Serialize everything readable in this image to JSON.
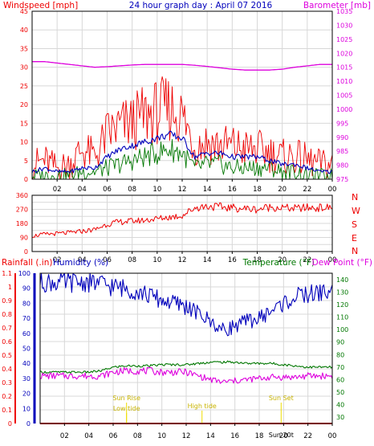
{
  "title": "24 hour graph day : April 07 2016",
  "colors": {
    "red": "#ee0000",
    "blue": "#0000bb",
    "green": "#007700",
    "magenta": "#dd00dd",
    "yellow": "#eedd00",
    "background": "#ffffff",
    "grid": "#d8d8d8"
  },
  "chart_data": [
    {
      "type": "line",
      "panel": "wind-barometer",
      "title": "24 hour graph day : April 07 2016",
      "left_axis_label": "Windspeed [mph]",
      "right_axis_label": "Barometer [mb]",
      "x_ticks": [
        "02",
        "04",
        "06",
        "08",
        "10",
        "12",
        "14",
        "16",
        "18",
        "20",
        "22",
        "00"
      ],
      "left_ylim": [
        0,
        45
      ],
      "left_ticks": [
        "0",
        "5",
        "10",
        "15",
        "20",
        "25",
        "30",
        "35",
        "40",
        "45"
      ],
      "right_ylim": [
        975,
        1035
      ],
      "right_ticks": [
        "975",
        "980",
        "985",
        "990",
        "995",
        "1000",
        "1005",
        "1010",
        "1015",
        "1020",
        "1025",
        "1030",
        "1035"
      ],
      "hours": [
        0,
        1,
        2,
        3,
        4,
        5,
        6,
        7,
        8,
        9,
        10,
        11,
        12,
        13,
        14,
        15,
        16,
        17,
        18,
        19,
        20,
        21,
        22,
        23,
        24
      ],
      "series": [
        {
          "axis": "left",
          "values": [
            4,
            5,
            3,
            4,
            8,
            6,
            12,
            14,
            15,
            17,
            18,
            19,
            17,
            9,
            10,
            9,
            9,
            8,
            8,
            7,
            6,
            6,
            5,
            4,
            4
          ]
        },
        {
          "axis": "left",
          "values": [
            2,
            3,
            2,
            2,
            3,
            3,
            6,
            8,
            9,
            10,
            11,
            12,
            11,
            6,
            7,
            7,
            6,
            6,
            6,
            5,
            4,
            4,
            3,
            2,
            2
          ]
        },
        {
          "axis": "left",
          "values": [
            1,
            1,
            1,
            1,
            2,
            2,
            3,
            4,
            5,
            6,
            7,
            8,
            7,
            3,
            4,
            4,
            3,
            3,
            3,
            3,
            2,
            2,
            1,
            1,
            1
          ]
        },
        {
          "axis": "right",
          "values": [
            1017,
            1017,
            1016.5,
            1016,
            1015.5,
            1015,
            1015.2,
            1015.5,
            1015.8,
            1016,
            1016,
            1016,
            1016,
            1015.7,
            1015.3,
            1014.8,
            1014.3,
            1014,
            1014,
            1014,
            1014.3,
            1015,
            1015.5,
            1016,
            1016
          ]
        }
      ]
    },
    {
      "type": "line",
      "panel": "wind-direction",
      "right_axis_letters": [
        "N",
        "W",
        "S",
        "E",
        "N"
      ],
      "x_ticks": [
        "02",
        "04",
        "06",
        "08",
        "10",
        "12",
        "14",
        "16",
        "18",
        "20",
        "22",
        "00"
      ],
      "ylim": [
        0,
        360
      ],
      "y_ticks": [
        "0",
        "90",
        "180",
        "270",
        "360"
      ],
      "hours": [
        0,
        1,
        2,
        3,
        4,
        5,
        6,
        7,
        8,
        9,
        10,
        11,
        12,
        13,
        14,
        15,
        16,
        17,
        18,
        19,
        20,
        21,
        22,
        23,
        24
      ],
      "series": [
        {
          "values": [
            100,
            110,
            115,
            120,
            130,
            140,
            175,
            190,
            195,
            200,
            210,
            220,
            230,
            280,
            290,
            285,
            280,
            275,
            270,
            285,
            280,
            275,
            280,
            280,
            280
          ]
        }
      ]
    },
    {
      "type": "line",
      "panel": "rain-humidity-temperature",
      "label_rainfall": "Rainfall (.in)",
      "label_humidity": "Humidity (%)",
      "label_temperature": "Temperature (°F)",
      "label_dewpoint": "Dew Point (°F)",
      "x_ticks": [
        "02",
        "04",
        "06",
        "08",
        "10",
        "12",
        "14",
        "16",
        "18",
        "20",
        "22",
        "00"
      ],
      "rain_ylim": [
        0,
        1.1
      ],
      "rain_ticks": [
        "0",
        "0.1",
        "0.2",
        "0.3",
        "0.4",
        "0.5",
        "0.6",
        "0.7",
        "0.8",
        "0.9",
        "1",
        "1.1"
      ],
      "humidity_ylim": [
        0,
        100
      ],
      "humidity_ticks": [
        "0",
        "10",
        "20",
        "30",
        "40",
        "50",
        "60",
        "70",
        "80",
        "90",
        "100"
      ],
      "temp_ylim": [
        25,
        145
      ],
      "temp_ticks": [
        "30",
        "40",
        "50",
        "60",
        "70",
        "80",
        "90",
        "100",
        "110",
        "120",
        "130",
        "140"
      ],
      "hours": [
        0,
        1,
        2,
        3,
        4,
        5,
        6,
        7,
        8,
        9,
        10,
        11,
        12,
        13,
        14,
        15,
        16,
        17,
        18,
        19,
        20,
        21,
        22,
        23,
        24
      ],
      "series": [
        {
          "axis": "temperature",
          "values": [
            66,
            66,
            66,
            66,
            66,
            67,
            70,
            71,
            71,
            71,
            72,
            72,
            72,
            73,
            74,
            74,
            74,
            73,
            73,
            73,
            72,
            71,
            70,
            70,
            70
          ]
        },
        {
          "axis": "humidity",
          "values": [
            94,
            94,
            94,
            94,
            94,
            93,
            91,
            90,
            88,
            85,
            82,
            80,
            78,
            73,
            68,
            62,
            65,
            68,
            70,
            75,
            80,
            84,
            86,
            87,
            88
          ]
        },
        {
          "axis": "temperature",
          "values": [
            63,
            63,
            63,
            63,
            63,
            63,
            66,
            67,
            67,
            67,
            66,
            66,
            66,
            63,
            60,
            58,
            59,
            60,
            61,
            62,
            62,
            62,
            63,
            63,
            63
          ]
        },
        {
          "axis": "rainfall",
          "values": [
            0,
            0,
            0,
            0,
            0,
            0,
            0,
            0,
            0,
            0,
            0,
            0,
            0,
            0,
            0,
            0,
            0,
            0,
            0,
            0,
            0,
            0,
            0,
            0,
            0
          ]
        }
      ],
      "annotations": [
        {
          "text": "Sun Rise",
          "hour": 7.1
        },
        {
          "text": "Low tide",
          "hour": 7.1
        },
        {
          "text": "High tide",
          "hour": 13.3
        },
        {
          "text": "Sun Set",
          "hour": 19.8
        },
        {
          "text": "Sun 20t",
          "hour": 19.8
        }
      ]
    }
  ]
}
